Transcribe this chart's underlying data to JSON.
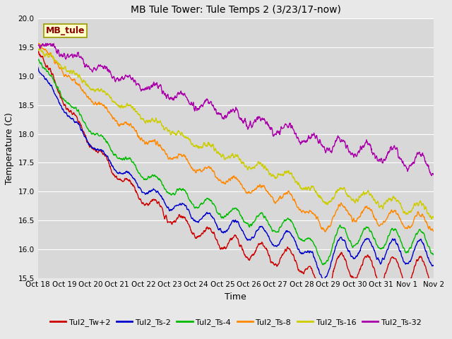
{
  "title": "MB Tule Tower: Tule Temps 2 (3/23/17-now)",
  "ylabel": "Temperature (C)",
  "xlabel": "Time",
  "watermark_label": "MB_tule",
  "ylim": [
    15.5,
    20.0
  ],
  "yticks": [
    15.5,
    16.0,
    16.5,
    17.0,
    17.5,
    18.0,
    18.5,
    19.0,
    19.5,
    20.0
  ],
  "xtick_labels": [
    "Oct 18",
    "Oct 19",
    "Oct 20",
    "Oct 21",
    "Oct 22",
    "Oct 23",
    "Oct 24",
    "Oct 25",
    "Oct 26",
    "Oct 27",
    "Oct 28",
    "Oct 29",
    "Oct 30",
    "Oct 31",
    "Nov 1",
    "Nov 2"
  ],
  "figsize": [
    6.4,
    4.8
  ],
  "dpi": 100,
  "bg_color": "#d8d8d8",
  "fig_bg_color": "#e8e8e8",
  "grid_color": "#ffffff",
  "series": [
    {
      "label": "Tul2_Tw+2",
      "color": "#cc0000"
    },
    {
      "label": "Tul2_Ts-2",
      "color": "#0000cc"
    },
    {
      "label": "Tul2_Ts-4",
      "color": "#00bb00"
    },
    {
      "label": "Tul2_Ts-8",
      "color": "#ff8800"
    },
    {
      "label": "Tul2_Ts-16",
      "color": "#cccc00"
    },
    {
      "label": "Tul2_Ts-32",
      "color": "#aa00aa"
    }
  ],
  "watermark_facecolor": "#ffffcc",
  "watermark_edgecolor": "#999900",
  "watermark_textcolor": "#880000",
  "linewidth": 1.0,
  "title_fontsize": 10,
  "axis_fontsize": 9,
  "tick_fontsize": 7.5,
  "legend_fontsize": 8
}
